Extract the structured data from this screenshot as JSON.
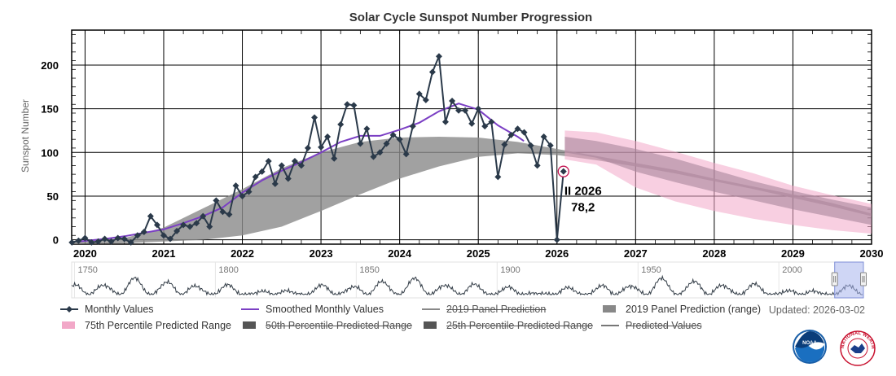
{
  "chart_data": {
    "type": "line",
    "title": "Solar Cycle Sunspot Number Progression",
    "ylabel": "Sunspot Number",
    "xlabel": "",
    "xlim": [
      2019.83,
      2030.0
    ],
    "ylim": [
      -5,
      240
    ],
    "grid": true,
    "x_ticks": [
      2020,
      2021,
      2022,
      2023,
      2024,
      2025,
      2026,
      2027,
      2028,
      2029,
      2030
    ],
    "x_tick_labels": [
      "2020",
      "2021",
      "2022",
      "2023",
      "2024",
      "2025",
      "2026",
      "2027",
      "2028",
      "2029",
      "2030"
    ],
    "y_ticks": [
      0,
      50,
      100,
      150,
      200
    ],
    "y_tick_labels": [
      "0",
      "50",
      "100",
      "150",
      "200"
    ],
    "series": [
      {
        "name": "Monthly Values",
        "kind": "line-markers",
        "color": "#2b3a4a",
        "x": [
          2019.833,
          2019.917,
          2020.0,
          2020.083,
          2020.167,
          2020.25,
          2020.333,
          2020.417,
          2020.5,
          2020.583,
          2020.667,
          2020.75,
          2020.833,
          2020.917,
          2021.0,
          2021.083,
          2021.167,
          2021.25,
          2021.333,
          2021.417,
          2021.5,
          2021.583,
          2021.667,
          2021.75,
          2021.833,
          2021.917,
          2022.0,
          2022.083,
          2022.167,
          2022.25,
          2022.333,
          2022.417,
          2022.5,
          2022.583,
          2022.667,
          2022.75,
          2022.833,
          2022.917,
          2023.0,
          2023.083,
          2023.167,
          2023.25,
          2023.333,
          2023.417,
          2023.5,
          2023.583,
          2023.667,
          2023.75,
          2023.833,
          2023.917,
          2024.0,
          2024.083,
          2024.167,
          2024.25,
          2024.333,
          2024.417,
          2024.5,
          2024.583,
          2024.667,
          2024.75,
          2024.833,
          2024.917,
          2025.0,
          2025.083,
          2025.167,
          2025.25,
          2025.333,
          2025.417,
          2025.5,
          2025.583,
          2025.667,
          2025.75,
          2025.833,
          2025.917,
          2026.0,
          2026.083
        ],
        "y": [
          -3,
          -1,
          2,
          -3,
          -2,
          1,
          -2,
          2,
          1,
          -3,
          5,
          9,
          27,
          17,
          5,
          1,
          10,
          17,
          15,
          19,
          27,
          15,
          45,
          32,
          29,
          62,
          50,
          55,
          72,
          78,
          90,
          64,
          85,
          70,
          90,
          85,
          105,
          140,
          106,
          118,
          93,
          132,
          155,
          154,
          110,
          127,
          95,
          100,
          110,
          120,
          115,
          98,
          130,
          167,
          160,
          192,
          210,
          135,
          159,
          148,
          148,
          133,
          150,
          130,
          135,
          72,
          109,
          120,
          127,
          123,
          108,
          85,
          118,
          108,
          0,
          78.2
        ]
      },
      {
        "name": "Smoothed Monthly Values",
        "kind": "line",
        "color": "#7b3fc4",
        "x": [
          2019.917,
          2020.25,
          2020.5,
          2020.75,
          2021.0,
          2021.25,
          2021.5,
          2021.75,
          2022.0,
          2022.25,
          2022.5,
          2022.75,
          2023.0,
          2023.25,
          2023.5,
          2023.75,
          2024.0,
          2024.25,
          2024.5,
          2024.75,
          2025.0,
          2025.25,
          2025.5,
          2025.58
        ],
        "y": [
          -2,
          1,
          4,
          8,
          12,
          19,
          27,
          37,
          54,
          68,
          79,
          89,
          100,
          112,
          119,
          119,
          126,
          134,
          147,
          156,
          149,
          131,
          118,
          113
        ]
      }
    ],
    "ranges": [
      {
        "name": "2019 Panel Prediction (range)",
        "color": "#8a8a8a",
        "x": [
          2019.83,
          2020.5,
          2021.0,
          2021.5,
          2022.0,
          2022.5,
          2023.0,
          2023.5,
          2024.0,
          2024.5,
          2025.0,
          2025.5,
          2026.0,
          2026.5,
          2027.0,
          2027.5,
          2028.0,
          2028.5,
          2029.0,
          2029.5,
          2030.0
        ],
        "low": [
          -5,
          -4,
          -2,
          0,
          5,
          15,
          33,
          52,
          70,
          84,
          95,
          99,
          97,
          91,
          84,
          76,
          67,
          58,
          48,
          38,
          27
        ],
        "high": [
          -3,
          2,
          14,
          36,
          58,
          82,
          100,
          112,
          117,
          118,
          117,
          112,
          104,
          96,
          88,
          80,
          70,
          61,
          52,
          42,
          30
        ]
      },
      {
        "name": "75th Percentile Predicted Range",
        "color": "#f2a8c8",
        "x": [
          2026.1,
          2026.5,
          2027.0,
          2027.5,
          2028.0,
          2028.5,
          2029.0,
          2029.5,
          2030.0
        ],
        "low": [
          92,
          86,
          60,
          44,
          33,
          24,
          17,
          11,
          7
        ],
        "high": [
          125,
          123,
          113,
          101,
          88,
          76,
          62,
          51,
          41
        ]
      },
      {
        "name": "50th Percentile Predicted Range",
        "color": "#a9859b",
        "x": [
          2026.1,
          2026.5,
          2027.0,
          2027.5,
          2028.0,
          2028.5,
          2029.0,
          2029.5,
          2030.0
        ],
        "low": [
          100,
          94,
          78,
          66,
          55,
          45,
          35,
          26,
          17
        ],
        "high": [
          118,
          113,
          104,
          93,
          80,
          67,
          56,
          46,
          37
        ]
      }
    ],
    "annotation": {
      "lines": [
        "II 2026",
        "78,2"
      ],
      "x": 2026.083,
      "y": 78.2,
      "highlight_point": true
    }
  },
  "navigator": {
    "year_labels": [
      "1750",
      "1800",
      "1850",
      "1900",
      "1950",
      "2000"
    ],
    "year_values": [
      1750,
      1800,
      1850,
      1900,
      1950,
      2000
    ],
    "range": [
      1749,
      2030
    ],
    "window": [
      2019.8,
      2030.0
    ],
    "series_color": "#333d47"
  },
  "legend": [
    {
      "label": "Monthly Values",
      "symbol": "line-marker",
      "color": "#2b3a4a",
      "hidden": false
    },
    {
      "label": "Smoothed Monthly Values",
      "symbol": "line",
      "color": "#7b3fc4",
      "hidden": false
    },
    {
      "label": "2019 Panel Prediction",
      "symbol": "line",
      "color": "#888888",
      "hidden": true
    },
    {
      "label": "2019 Panel Prediction (range)",
      "symbol": "box",
      "color": "#888888",
      "hidden": false
    },
    {
      "label": "75th Percentile Predicted Range",
      "symbol": "box",
      "color": "#f2a8c8",
      "hidden": false
    },
    {
      "label": "50th Percentile Predicted Range",
      "symbol": "box",
      "color": "#555555",
      "hidden": true
    },
    {
      "label": "25th Percentile Predicted Range",
      "symbol": "box",
      "color": "#555555",
      "hidden": true
    },
    {
      "label": "Predicted Values",
      "symbol": "line",
      "color": "#777777",
      "hidden": true
    }
  ],
  "updated": "Updated: 2026-03-02",
  "logos": {
    "noaa": {
      "text": "NOAA",
      "icon": "noaa-logo-icon"
    },
    "nws": {
      "text": "NATIONAL WEATHER SERVICE",
      "icon": "nws-logo-icon"
    }
  }
}
